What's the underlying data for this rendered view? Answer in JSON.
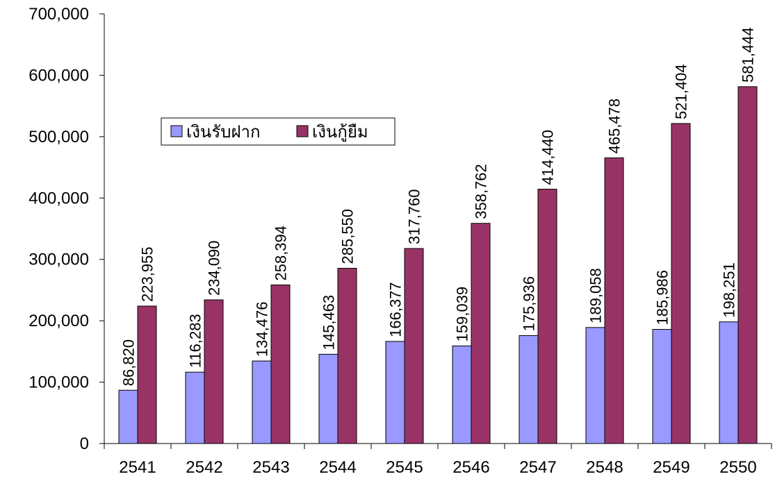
{
  "chart_data": {
    "type": "bar",
    "categories": [
      "2541",
      "2542",
      "2543",
      "2544",
      "2545",
      "2546",
      "2547",
      "2548",
      "2549",
      "2550"
    ],
    "series": [
      {
        "name": "เงินรับฝาก",
        "color": "#9999ff",
        "values": [
          86820,
          116283,
          134476,
          145463,
          166377,
          159039,
          175936,
          189058,
          185986,
          198251
        ],
        "value_labels": [
          "86,820",
          "116,283",
          "134,476",
          "145,463",
          "166,377",
          "159,039",
          "175,936",
          "189,058",
          "185,986",
          "198,251"
        ]
      },
      {
        "name": "เงินกู้ยืม",
        "color": "#993366",
        "values": [
          223955,
          234090,
          258394,
          285550,
          317760,
          358762,
          414440,
          465478,
          521404,
          581444
        ],
        "value_labels": [
          "223,955",
          "234,090",
          "258,394",
          "285,550",
          "317,760",
          "358,762",
          "414,440",
          "465,478",
          "521,404",
          "581,444"
        ]
      }
    ],
    "ylim": [
      0,
      700000
    ],
    "yticks": [
      0,
      {
        "value": 100000,
        "label": "100,000"
      },
      {
        "value": 200000,
        "label": "200,000"
      },
      {
        "value": 300000,
        "label": "300,000"
      },
      {
        "value": 400000,
        "label": "400,000"
      },
      {
        "value": 500000,
        "label": "500,000"
      },
      {
        "value": 600000,
        "label": "600,000"
      },
      {
        "value": 700000,
        "label": "700,000"
      }
    ],
    "legend": "top-left"
  }
}
